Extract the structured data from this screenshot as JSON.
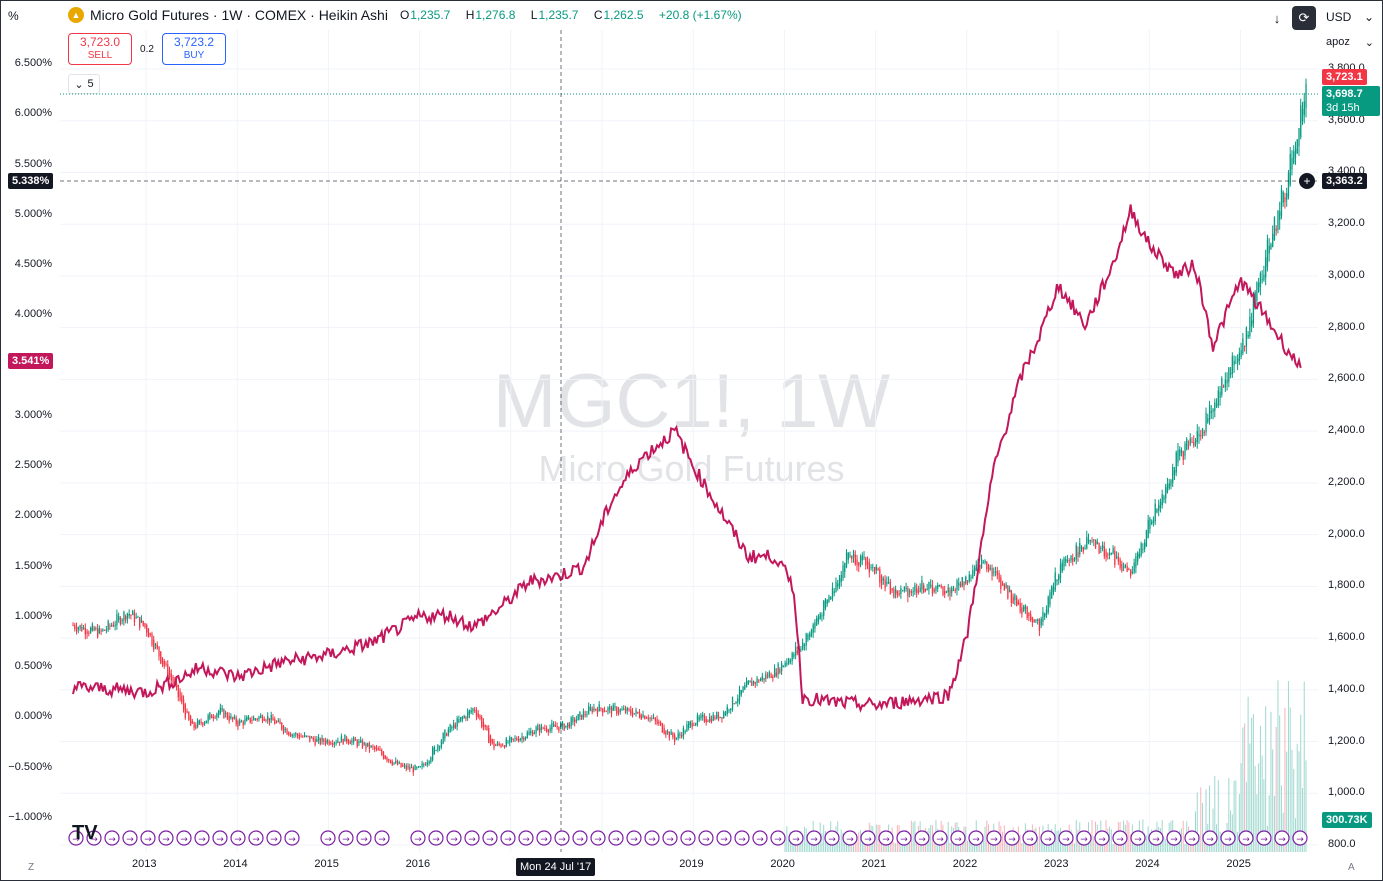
{
  "toolbar": {
    "left_label": "%",
    "currency": "USD",
    "scale_mode": "apoz"
  },
  "symbol": {
    "title": "Micro Gold Futures · 1W · COMEX · Heikin Ashi",
    "open": "1,235.7",
    "high": "1,276.8",
    "low": "1,235.7",
    "close": "1,262.5",
    "change": "+20.8 (+1.67%)",
    "o_lbl": "O",
    "h_lbl": "H",
    "l_lbl": "L",
    "c_lbl": "C"
  },
  "trade": {
    "sell_price": "3,723.0",
    "sell_label": "SELL",
    "spread": "0.2",
    "buy_price": "3,723.2",
    "buy_label": "BUY"
  },
  "indicators_count": "5",
  "watermark": {
    "symbol": "MGC1!, 1W",
    "name": "Micro Gold Futures"
  },
  "left_axis": [
    "6.500%",
    "6.000%",
    "5.500%",
    "5.000%",
    "4.500%",
    "4.000%",
    "3.500%",
    "3.000%",
    "2.500%",
    "2.000%",
    "1.500%",
    "1.000%",
    "0.500%",
    "0.000%",
    "−0.500%",
    "−1.000%"
  ],
  "right_axis": [
    "3,800.0",
    "3,600.0",
    "3,400.0",
    "3,200.0",
    "3,000.0",
    "2,800.0",
    "2,600.0",
    "2,400.0",
    "2,200.0",
    "2,000.0",
    "1,800.0",
    "1,600.0",
    "1,400.0",
    "1,200.0",
    "1,000.0",
    "800.0"
  ],
  "time_axis": [
    "2013",
    "2014",
    "2015",
    "2016",
    "2017",
    "2018",
    "2019",
    "2020",
    "2021",
    "2022",
    "2023",
    "2024",
    "2025"
  ],
  "crosshair": {
    "date": "Mon 24 Jul '17",
    "pct": "5.338%",
    "price": "3,363.2"
  },
  "tags": {
    "yield_last": "3.541%",
    "ask": "3,723.1",
    "last": "3,698.7",
    "countdown": "3d 15h",
    "volume": "300.73K"
  },
  "corners": {
    "bottom_left": "Z",
    "bottom_right": "A"
  },
  "colors": {
    "up": "#089981",
    "down": "#f23645",
    "yield": "#c2185b",
    "ask": "#f23645",
    "crosshair": "#131722"
  },
  "chart_data": {
    "type": "line",
    "series": [
      {
        "name": "MGC1!",
        "scale": "right",
        "x": [
          2012.2,
          2012.5,
          2012.8,
          2013.0,
          2013.3,
          2013.5,
          2013.8,
          2014.0,
          2014.3,
          2014.6,
          2014.9,
          2015.2,
          2015.5,
          2015.8,
          2016.0,
          2016.3,
          2016.6,
          2016.8,
          2017.0,
          2017.3,
          2017.6,
          2017.9,
          2018.2,
          2018.5,
          2018.8,
          2019.0,
          2019.3,
          2019.6,
          2019.9,
          2020.2,
          2020.5,
          2020.7,
          2021.0,
          2021.2,
          2021.5,
          2021.8,
          2022.0,
          2022.2,
          2022.5,
          2022.8,
          2023.0,
          2023.3,
          2023.6,
          2023.8,
          2024.0,
          2024.3,
          2024.6,
          2024.9,
          2025.0,
          2025.3,
          2025.5,
          2025.7
        ],
        "y": [
          1650,
          1620,
          1700,
          1640,
          1420,
          1250,
          1320,
          1270,
          1300,
          1230,
          1200,
          1210,
          1170,
          1100,
          1090,
          1240,
          1330,
          1180,
          1200,
          1250,
          1260,
          1330,
          1320,
          1300,
          1210,
          1280,
          1300,
          1420,
          1470,
          1580,
          1760,
          1930,
          1860,
          1770,
          1800,
          1780,
          1830,
          1900,
          1750,
          1650,
          1860,
          1970,
          1920,
          1840,
          2040,
          2290,
          2420,
          2660,
          2700,
          3100,
          3350,
          3698.7
        ]
      },
      {
        "name": "US10Y",
        "scale": "left",
        "x": [
          2012.2,
          2012.6,
          2013.0,
          2013.4,
          2013.6,
          2014.0,
          2014.5,
          2015.0,
          2015.5,
          2016.0,
          2016.3,
          2016.6,
          2016.9,
          2017.2,
          2017.5,
          2017.8,
          2018.1,
          2018.4,
          2018.8,
          2019.0,
          2019.3,
          2019.6,
          2019.9,
          2020.1,
          2020.2,
          2020.5,
          2021.0,
          2021.5,
          2021.8,
          2022.0,
          2022.3,
          2022.6,
          2022.8,
          2023.0,
          2023.3,
          2023.6,
          2023.8,
          2024.0,
          2024.3,
          2024.5,
          2024.7,
          2025.0,
          2025.3,
          2025.6
        ],
        "y": [
          0.3,
          0.28,
          0.25,
          0.4,
          0.5,
          0.4,
          0.55,
          0.62,
          0.75,
          1.0,
          1.02,
          0.9,
          1.1,
          1.35,
          1.4,
          1.5,
          2.15,
          2.55,
          2.85,
          2.5,
          2.05,
          1.6,
          1.6,
          1.3,
          0.2,
          0.15,
          0.12,
          0.18,
          0.22,
          0.8,
          2.5,
          3.4,
          3.8,
          4.3,
          3.9,
          4.5,
          5.05,
          4.7,
          4.4,
          4.5,
          3.7,
          4.35,
          3.95,
          3.54
        ]
      }
    ],
    "ylim_left": [
      -1.0,
      6.5
    ],
    "ylim_right": [
      800,
      3800
    ]
  }
}
